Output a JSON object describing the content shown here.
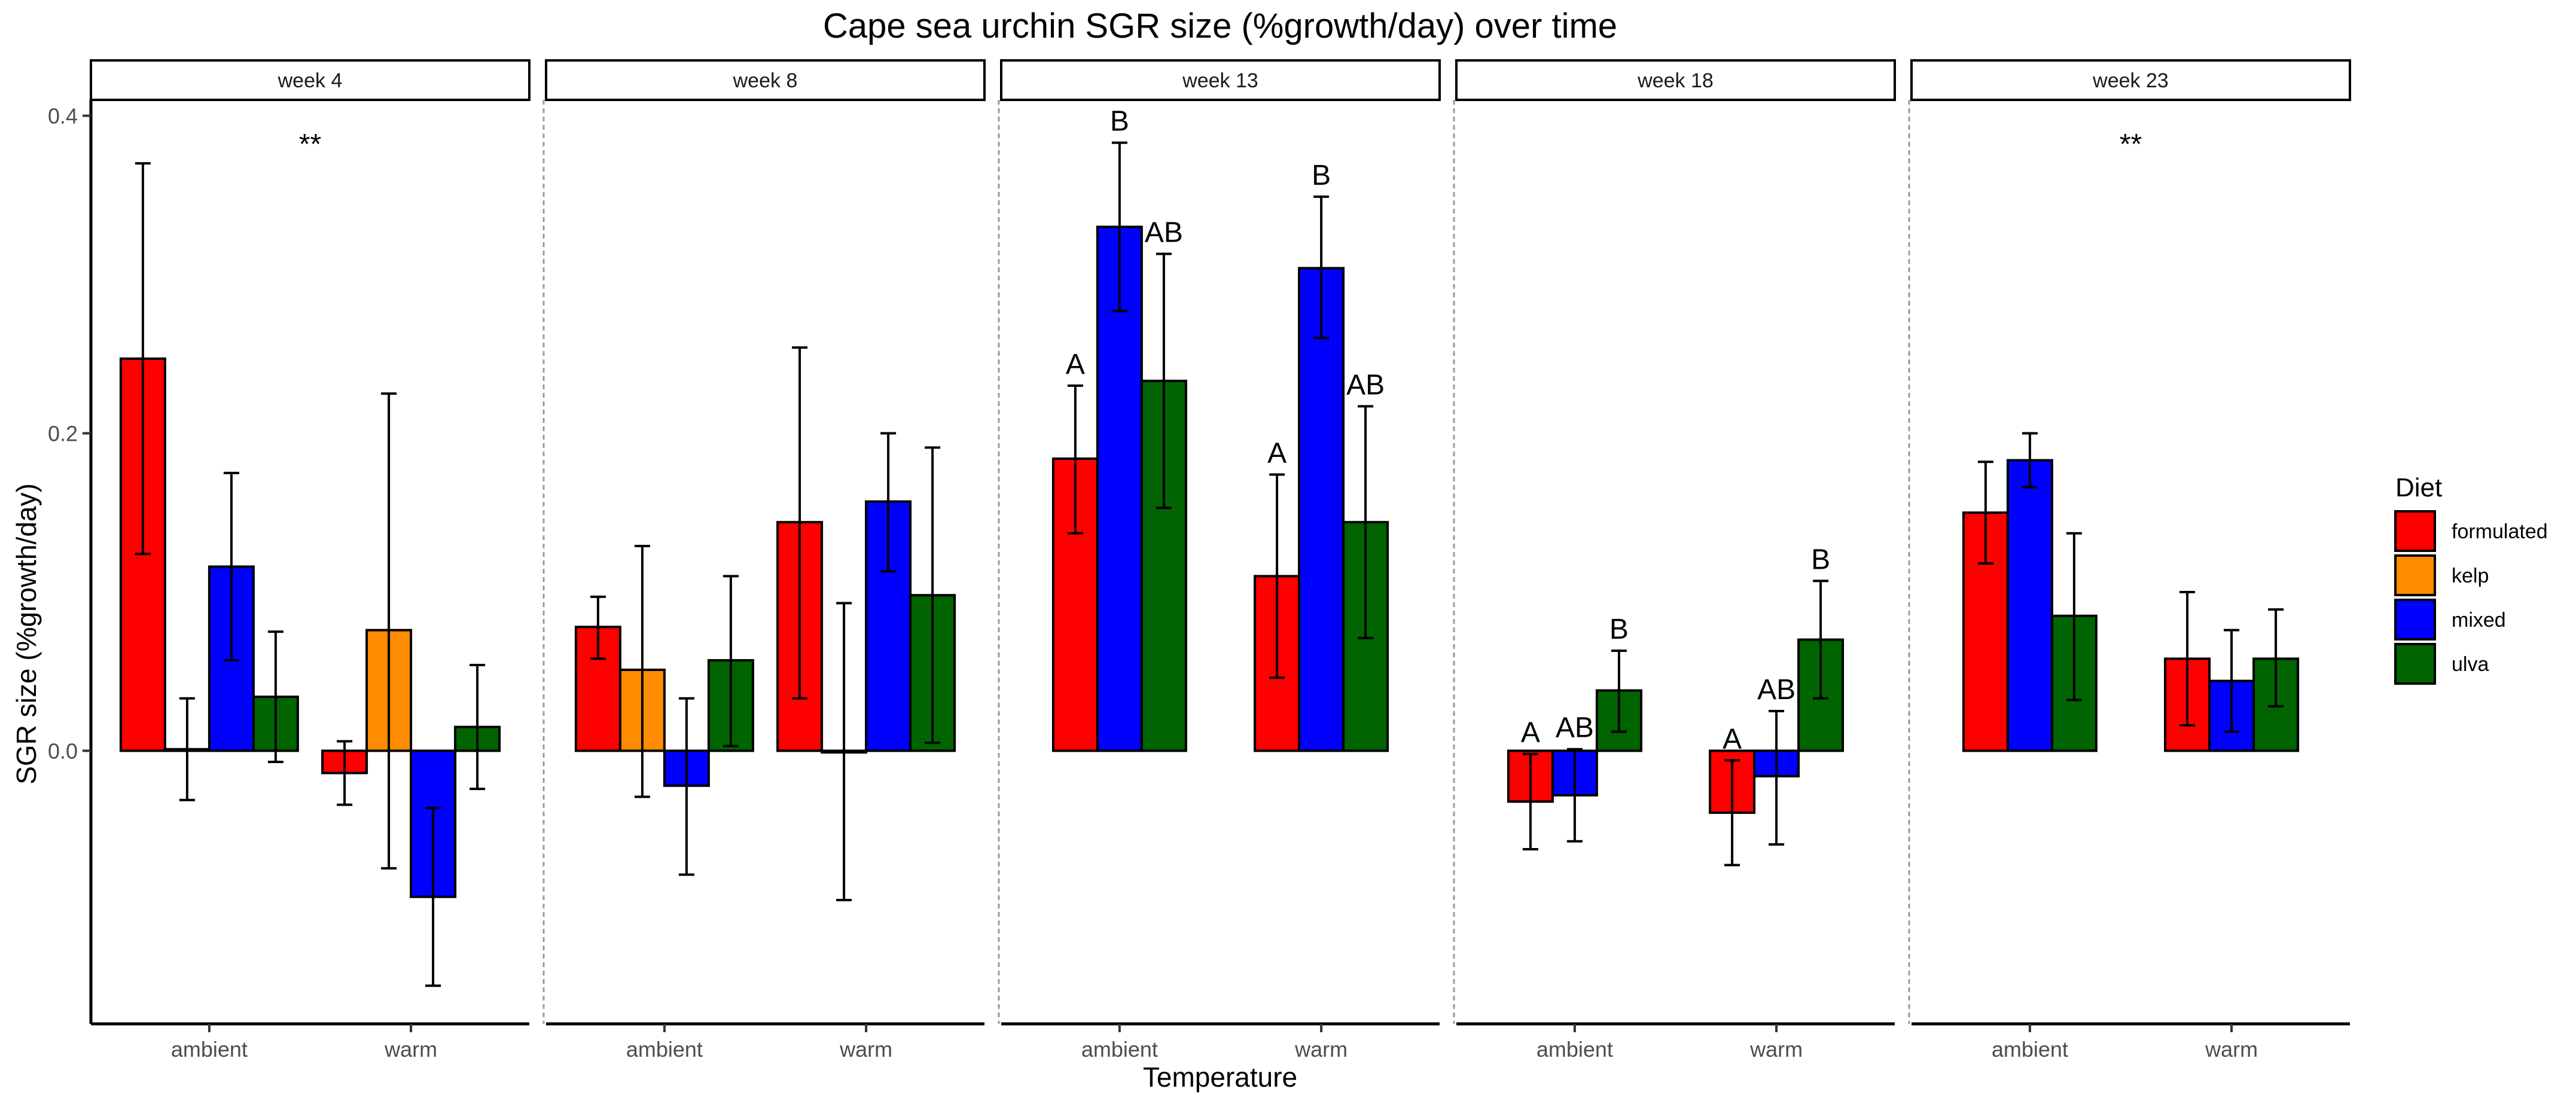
{
  "chart_data": {
    "type": "bar",
    "title": "Cape sea urchin SGR size (%growth/day) over time",
    "xlabel": "Temperature",
    "ylabel": "SGR size (%growth/day)",
    "ylim": [
      -0.172,
      0.41
    ],
    "yticks": [
      0.0,
      0.2,
      0.4
    ],
    "ytick_labels": [
      "0.0",
      "0.2",
      "0.4"
    ],
    "categories": [
      "ambient",
      "warm"
    ],
    "legend": {
      "title": "Diet",
      "position": "right",
      "entries": [
        "formulated",
        "kelp",
        "mixed",
        "ulva"
      ]
    },
    "colors": {
      "formulated": "#ff0000",
      "kelp": "#ff8c00",
      "mixed": "#0000ff",
      "ulva": "#006400"
    },
    "grid": false,
    "panels": [
      {
        "label": "week 4",
        "annotation": "**",
        "groups": [
          {
            "category": "ambient",
            "bars": [
              {
                "diet": "formulated",
                "value": 0.247,
                "err_low": 0.124,
                "err_high": 0.37
              },
              {
                "diet": "kelp",
                "value": 0.001,
                "err_low": -0.031,
                "err_high": 0.033
              },
              {
                "diet": "mixed",
                "value": 0.116,
                "err_low": 0.057,
                "err_high": 0.175
              },
              {
                "diet": "ulva",
                "value": 0.034,
                "err_low": -0.007,
                "err_high": 0.075
              }
            ]
          },
          {
            "category": "warm",
            "bars": [
              {
                "diet": "formulated",
                "value": -0.014,
                "err_low": -0.034,
                "err_high": 0.006
              },
              {
                "diet": "kelp",
                "value": 0.076,
                "err_low": -0.074,
                "err_high": 0.225
              },
              {
                "diet": "mixed",
                "value": -0.092,
                "err_low": -0.148,
                "err_high": -0.036
              },
              {
                "diet": "ulva",
                "value": 0.015,
                "err_low": -0.024,
                "err_high": 0.054
              }
            ]
          }
        ]
      },
      {
        "label": "week 8",
        "annotation": "",
        "groups": [
          {
            "category": "ambient",
            "bars": [
              {
                "diet": "formulated",
                "value": 0.078,
                "err_low": 0.058,
                "err_high": 0.097
              },
              {
                "diet": "kelp",
                "value": 0.051,
                "err_low": -0.029,
                "err_high": 0.129
              },
              {
                "diet": "mixed",
                "value": -0.022,
                "err_low": -0.078,
                "err_high": 0.033
              },
              {
                "diet": "ulva",
                "value": 0.057,
                "err_low": 0.003,
                "err_high": 0.11
              }
            ]
          },
          {
            "category": "warm",
            "bars": [
              {
                "diet": "formulated",
                "value": 0.144,
                "err_low": 0.033,
                "err_high": 0.254
              },
              {
                "diet": "kelp",
                "value": -0.001,
                "err_low": -0.094,
                "err_high": 0.093
              },
              {
                "diet": "mixed",
                "value": 0.157,
                "err_low": 0.113,
                "err_high": 0.2
              },
              {
                "diet": "ulva",
                "value": 0.098,
                "err_low": 0.005,
                "err_high": 0.191
              }
            ]
          }
        ]
      },
      {
        "label": "week 13",
        "annotation": "",
        "groups": [
          {
            "category": "ambient",
            "bars": [
              {
                "diet": "formulated",
                "value": 0.184,
                "err_low": 0.137,
                "err_high": 0.23,
                "label": "A"
              },
              {
                "diet": "mixed",
                "value": 0.33,
                "err_low": 0.277,
                "err_high": 0.383,
                "label": "B"
              },
              {
                "diet": "ulva",
                "value": 0.233,
                "err_low": 0.153,
                "err_high": 0.313,
                "label": "AB"
              }
            ]
          },
          {
            "category": "warm",
            "bars": [
              {
                "diet": "formulated",
                "value": 0.11,
                "err_low": 0.046,
                "err_high": 0.174,
                "label": "A"
              },
              {
                "diet": "mixed",
                "value": 0.304,
                "err_low": 0.26,
                "err_high": 0.349,
                "label": "B"
              },
              {
                "diet": "ulva",
                "value": 0.144,
                "err_low": 0.071,
                "err_high": 0.217,
                "label": "AB"
              }
            ]
          }
        ]
      },
      {
        "label": "week 18",
        "annotation": "",
        "groups": [
          {
            "category": "ambient",
            "bars": [
              {
                "diet": "formulated",
                "value": -0.032,
                "err_low": -0.062,
                "err_high": -0.002,
                "label": "A"
              },
              {
                "diet": "mixed",
                "value": -0.028,
                "err_low": -0.057,
                "err_high": 0.001,
                "label": "AB"
              },
              {
                "diet": "ulva",
                "value": 0.038,
                "err_low": 0.012,
                "err_high": 0.063,
                "label": "B"
              }
            ]
          },
          {
            "category": "warm",
            "bars": [
              {
                "diet": "formulated",
                "value": -0.039,
                "err_low": -0.072,
                "err_high": -0.006,
                "label": "A"
              },
              {
                "diet": "mixed",
                "value": -0.016,
                "err_low": -0.059,
                "err_high": 0.025,
                "label": "AB"
              },
              {
                "diet": "ulva",
                "value": 0.07,
                "err_low": 0.033,
                "err_high": 0.107,
                "label": "B"
              }
            ]
          }
        ]
      },
      {
        "label": "week 23",
        "annotation": "**",
        "groups": [
          {
            "category": "ambient",
            "bars": [
              {
                "diet": "formulated",
                "value": 0.15,
                "err_low": 0.118,
                "err_high": 0.182
              },
              {
                "diet": "mixed",
                "value": 0.183,
                "err_low": 0.166,
                "err_high": 0.2
              },
              {
                "diet": "ulva",
                "value": 0.085,
                "err_low": 0.032,
                "err_high": 0.137
              }
            ]
          },
          {
            "category": "warm",
            "bars": [
              {
                "diet": "formulated",
                "value": 0.058,
                "err_low": 0.016,
                "err_high": 0.1
              },
              {
                "diet": "mixed",
                "value": 0.044,
                "err_low": 0.012,
                "err_high": 0.076
              },
              {
                "diet": "ulva",
                "value": 0.058,
                "err_low": 0.028,
                "err_high": 0.089
              }
            ]
          }
        ]
      }
    ]
  }
}
